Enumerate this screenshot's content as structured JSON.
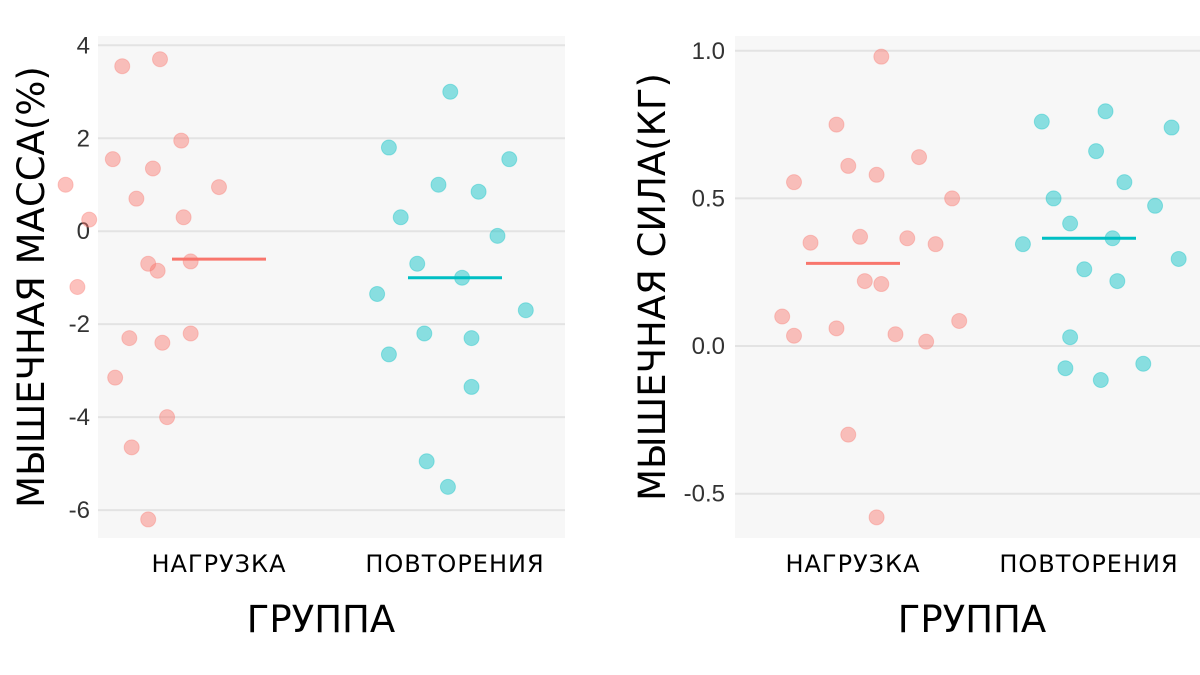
{
  "colors": {
    "panel_bg": "#f7f7f7",
    "grid": "#e3e3e3",
    "group1": "#f8766d",
    "group2": "#00bfc4"
  },
  "chart_data": [
    {
      "type": "scatter",
      "subtype": "jitter-strip with mean line",
      "xlabel": "ГРУППА",
      "ylabel": "МЫШЕЧНАЯ МАССА(%)",
      "categories": [
        "НАГРУЗКА",
        "ПОВТОРЕНИЯ"
      ],
      "ylim": [
        -6.6,
        4.2
      ],
      "yticks": [
        4,
        2,
        0,
        -2,
        -4,
        -6
      ],
      "ytick_labels": [
        "4",
        "2",
        "0",
        "-2",
        "-4",
        "-6"
      ],
      "grid": true,
      "series": [
        {
          "name": "НАГРУЗКА",
          "color": "#f8766d",
          "mean": -0.6,
          "points": [
            {
              "x": -0.65,
              "y": 1.0
            },
            {
              "x": -0.6,
              "y": -1.2
            },
            {
              "x": -0.55,
              "y": 0.25
            },
            {
              "x": -0.45,
              "y": 1.55
            },
            {
              "x": -0.44,
              "y": -3.15
            },
            {
              "x": -0.41,
              "y": 3.55
            },
            {
              "x": -0.38,
              "y": -2.3
            },
            {
              "x": -0.37,
              "y": -4.65
            },
            {
              "x": -0.35,
              "y": 0.7
            },
            {
              "x": -0.3,
              "y": -0.7
            },
            {
              "x": -0.28,
              "y": 1.35
            },
            {
              "x": -0.26,
              "y": -0.85
            },
            {
              "x": -0.25,
              "y": 3.7
            },
            {
              "x": -0.24,
              "y": -2.4
            },
            {
              "x": -0.22,
              "y": -4.0
            },
            {
              "x": -0.3,
              "y": -6.2
            },
            {
              "x": -0.16,
              "y": 1.95
            },
            {
              "x": -0.15,
              "y": 0.3
            },
            {
              "x": -0.12,
              "y": -0.65
            },
            {
              "x": -0.12,
              "y": -2.2
            },
            {
              "x": 0.0,
              "y": 0.95
            }
          ]
        },
        {
          "name": "ПОВТОРЕНИЯ",
          "color": "#00bfc4",
          "mean": -1.0,
          "points": [
            {
              "x": 0.67,
              "y": -1.35
            },
            {
              "x": 0.72,
              "y": -2.65
            },
            {
              "x": 0.72,
              "y": 1.8
            },
            {
              "x": 0.77,
              "y": 0.3
            },
            {
              "x": 0.84,
              "y": -0.7
            },
            {
              "x": 0.87,
              "y": -2.2
            },
            {
              "x": 0.88,
              "y": -4.95
            },
            {
              "x": 0.93,
              "y": 1.0
            },
            {
              "x": 0.97,
              "y": -5.5
            },
            {
              "x": 0.98,
              "y": 3.0
            },
            {
              "x": 1.03,
              "y": -1.0
            },
            {
              "x": 1.07,
              "y": -2.3
            },
            {
              "x": 1.07,
              "y": -3.35
            },
            {
              "x": 1.1,
              "y": 0.85
            },
            {
              "x": 1.18,
              "y": -0.1
            },
            {
              "x": 1.23,
              "y": 1.55
            },
            {
              "x": 1.3,
              "y": -1.7
            }
          ]
        }
      ]
    },
    {
      "type": "scatter",
      "subtype": "jitter-strip with mean line",
      "xlabel": "ГРУППА",
      "ylabel": "МЫШЕЧНАЯ СИЛА(КГ)",
      "categories": [
        "НАГРУЗКА",
        "ПОВТОРЕНИЯ"
      ],
      "ylim": [
        -0.65,
        1.05
      ],
      "yticks": [
        1.0,
        0.5,
        0.0,
        -0.5
      ],
      "ytick_labels": [
        "1.0",
        "0.5",
        "0.0",
        "-0.5"
      ],
      "grid": true,
      "series": [
        {
          "name": "НАГРУЗКА",
          "color": "#f8766d",
          "mean": 0.28,
          "points": [
            {
              "x": -0.3,
              "y": 0.1
            },
            {
              "x": -0.25,
              "y": 0.555
            },
            {
              "x": -0.25,
              "y": 0.035
            },
            {
              "x": -0.18,
              "y": 0.35
            },
            {
              "x": -0.07,
              "y": 0.75
            },
            {
              "x": -0.07,
              "y": 0.06
            },
            {
              "x": -0.02,
              "y": 0.61
            },
            {
              "x": -0.02,
              "y": -0.3
            },
            {
              "x": 0.03,
              "y": 0.37
            },
            {
              "x": 0.05,
              "y": 0.22
            },
            {
              "x": 0.1,
              "y": -0.58
            },
            {
              "x": 0.1,
              "y": 0.58
            },
            {
              "x": 0.12,
              "y": 0.98
            },
            {
              "x": 0.12,
              "y": 0.21
            },
            {
              "x": 0.18,
              "y": 0.04
            },
            {
              "x": 0.23,
              "y": 0.365
            },
            {
              "x": 0.28,
              "y": 0.64
            },
            {
              "x": 0.31,
              "y": 0.015
            },
            {
              "x": 0.35,
              "y": 0.345
            },
            {
              "x": 0.42,
              "y": 0.5
            },
            {
              "x": 0.45,
              "y": 0.085
            }
          ]
        },
        {
          "name": "ПОВТОРЕНИЯ",
          "color": "#00bfc4",
          "mean": 0.365,
          "points": [
            {
              "x": 0.72,
              "y": 0.345
            },
            {
              "x": 0.8,
              "y": 0.76
            },
            {
              "x": 0.85,
              "y": 0.5
            },
            {
              "x": 0.9,
              "y": -0.075
            },
            {
              "x": 0.92,
              "y": 0.415
            },
            {
              "x": 0.92,
              "y": 0.03
            },
            {
              "x": 0.98,
              "y": 0.26
            },
            {
              "x": 1.03,
              "y": 0.66
            },
            {
              "x": 1.05,
              "y": -0.115
            },
            {
              "x": 1.07,
              "y": 0.795
            },
            {
              "x": 1.1,
              "y": 0.365
            },
            {
              "x": 1.12,
              "y": 0.22
            },
            {
              "x": 1.15,
              "y": 0.555
            },
            {
              "x": 1.23,
              "y": -0.06
            },
            {
              "x": 1.28,
              "y": 0.475
            },
            {
              "x": 1.35,
              "y": 0.74
            },
            {
              "x": 1.38,
              "y": 0.295
            }
          ]
        }
      ]
    }
  ]
}
